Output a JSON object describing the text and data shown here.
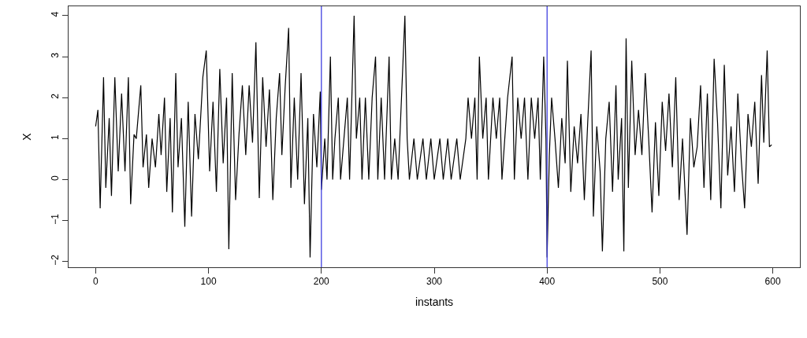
{
  "chart_data": {
    "type": "line",
    "xlabel": "instants",
    "ylabel": "X",
    "xlim": [
      -24,
      624
    ],
    "xticks": [
      0,
      100,
      200,
      300,
      400,
      500,
      600
    ],
    "ylim": [
      -2.14,
      4.23
    ],
    "yticks": [
      -2,
      -1,
      0,
      1,
      2,
      3,
      4
    ],
    "grid": false,
    "marker": "none",
    "line_style": "solid",
    "ref_lines": [
      {
        "axis": "x",
        "value": 200,
        "color": "#4040e0"
      },
      {
        "axis": "x",
        "value": 400,
        "color": "#4040e0"
      }
    ],
    "series": [
      {
        "color": "#000000",
        "x": [
          0,
          2,
          4,
          7,
          9,
          12,
          14,
          17,
          20,
          23,
          26,
          29,
          31,
          34,
          36,
          40,
          42,
          45,
          47,
          50,
          53,
          56,
          58,
          61,
          63,
          66,
          68,
          71,
          73,
          76,
          79,
          82,
          85,
          88,
          91,
          95,
          98,
          101,
          104,
          107,
          110,
          113,
          116,
          118,
          121,
          124,
          127,
          130,
          133,
          136,
          139,
          142,
          145,
          148,
          151,
          154,
          157,
          160,
          163,
          165,
          168,
          171,
          173,
          176,
          179,
          182,
          185,
          188,
          190,
          193,
          196,
          199,
          200,
          203,
          205,
          208,
          210,
          212,
          215,
          217,
          220,
          223,
          225,
          229,
          231,
          234,
          236,
          239,
          242,
          245,
          248,
          250,
          253,
          256,
          260,
          262,
          265,
          268,
          271,
          274,
          276,
          278,
          282,
          285,
          290,
          293,
          297,
          300,
          305,
          308,
          312,
          315,
          320,
          323,
          328,
          330,
          333,
          336,
          338,
          340,
          343,
          346,
          348,
          352,
          355,
          358,
          360,
          365,
          369,
          371,
          374,
          377,
          380,
          383,
          386,
          389,
          392,
          394,
          397,
          399,
          400,
          402,
          404,
          407,
          410,
          413,
          416,
          418,
          421,
          424,
          427,
          430,
          433,
          436,
          439,
          441,
          444,
          447,
          449,
          452,
          455,
          458,
          461,
          463,
          466,
          468,
          470,
          472,
          475,
          478,
          481,
          484,
          487,
          490,
          493,
          496,
          499,
          502,
          505,
          508,
          511,
          514,
          517,
          520,
          524,
          527,
          530,
          533,
          536,
          539,
          542,
          545,
          548,
          551,
          554,
          557,
          560,
          563,
          566,
          569,
          572,
          575,
          578,
          581,
          584,
          587,
          590,
          592,
          595,
          597,
          599
        ],
        "values": [
          1.3,
          1.7,
          -0.7,
          2.5,
          -0.2,
          1.5,
          -0.4,
          2.5,
          0.2,
          2.1,
          0.2,
          2.5,
          -0.6,
          1.1,
          1.0,
          2.3,
          0.3,
          1.1,
          -0.2,
          1.0,
          0.3,
          1.6,
          0.6,
          2.0,
          -0.3,
          1.5,
          -0.8,
          2.6,
          0.3,
          1.5,
          -1.15,
          1.9,
          -0.9,
          1.6,
          0.5,
          2.5,
          3.15,
          0.2,
          1.9,
          -0.3,
          2.7,
          0.4,
          2.0,
          -1.7,
          2.6,
          -0.5,
          1.1,
          2.3,
          0.6,
          2.3,
          0.9,
          3.35,
          -0.45,
          2.5,
          0.8,
          2.2,
          -0.5,
          1.5,
          2.6,
          0.6,
          2.3,
          3.7,
          -0.2,
          2.0,
          0.0,
          2.6,
          -0.6,
          1.5,
          -1.9,
          1.6,
          0.3,
          2.15,
          -0.25,
          1,
          0,
          3,
          0,
          1,
          2,
          0,
          1,
          2,
          0,
          4,
          1,
          2,
          0,
          2,
          0,
          2,
          3,
          0,
          2,
          0,
          3,
          0,
          1,
          0,
          2,
          4,
          1,
          0,
          1,
          0,
          1,
          0,
          1,
          0,
          1,
          0,
          1,
          0,
          1,
          0,
          1,
          2,
          1,
          2,
          0,
          3,
          1,
          2,
          0,
          2,
          1,
          2,
          0,
          2,
          3,
          0,
          2,
          1,
          2,
          0,
          2,
          1,
          2,
          0,
          3,
          1,
          -1.9,
          0.6,
          2.0,
          1.0,
          -0.2,
          1.5,
          0.4,
          2.9,
          -0.3,
          1.3,
          0.4,
          1.6,
          -0.5,
          1.4,
          3.15,
          -0.9,
          1.3,
          0.2,
          -1.75,
          1.0,
          1.9,
          -0.3,
          2.3,
          0.0,
          1.5,
          -1.75,
          3.45,
          -0.2,
          2.9,
          0.6,
          1.7,
          0.6,
          2.6,
          1.0,
          -0.8,
          1.4,
          -0.4,
          1.9,
          0.7,
          2.1,
          0.3,
          2.5,
          -0.5,
          1.0,
          -1.35,
          1.5,
          0.3,
          0.8,
          2.3,
          -0.2,
          2.1,
          -0.5,
          2.95,
          1.4,
          -0.7,
          2.8,
          0.1,
          1.3,
          -0.3,
          2.1,
          0.5,
          -0.7,
          1.6,
          0.8,
          1.9,
          -0.1,
          2.55,
          0.9,
          3.15,
          0.8,
          0.85
        ]
      }
    ]
  }
}
